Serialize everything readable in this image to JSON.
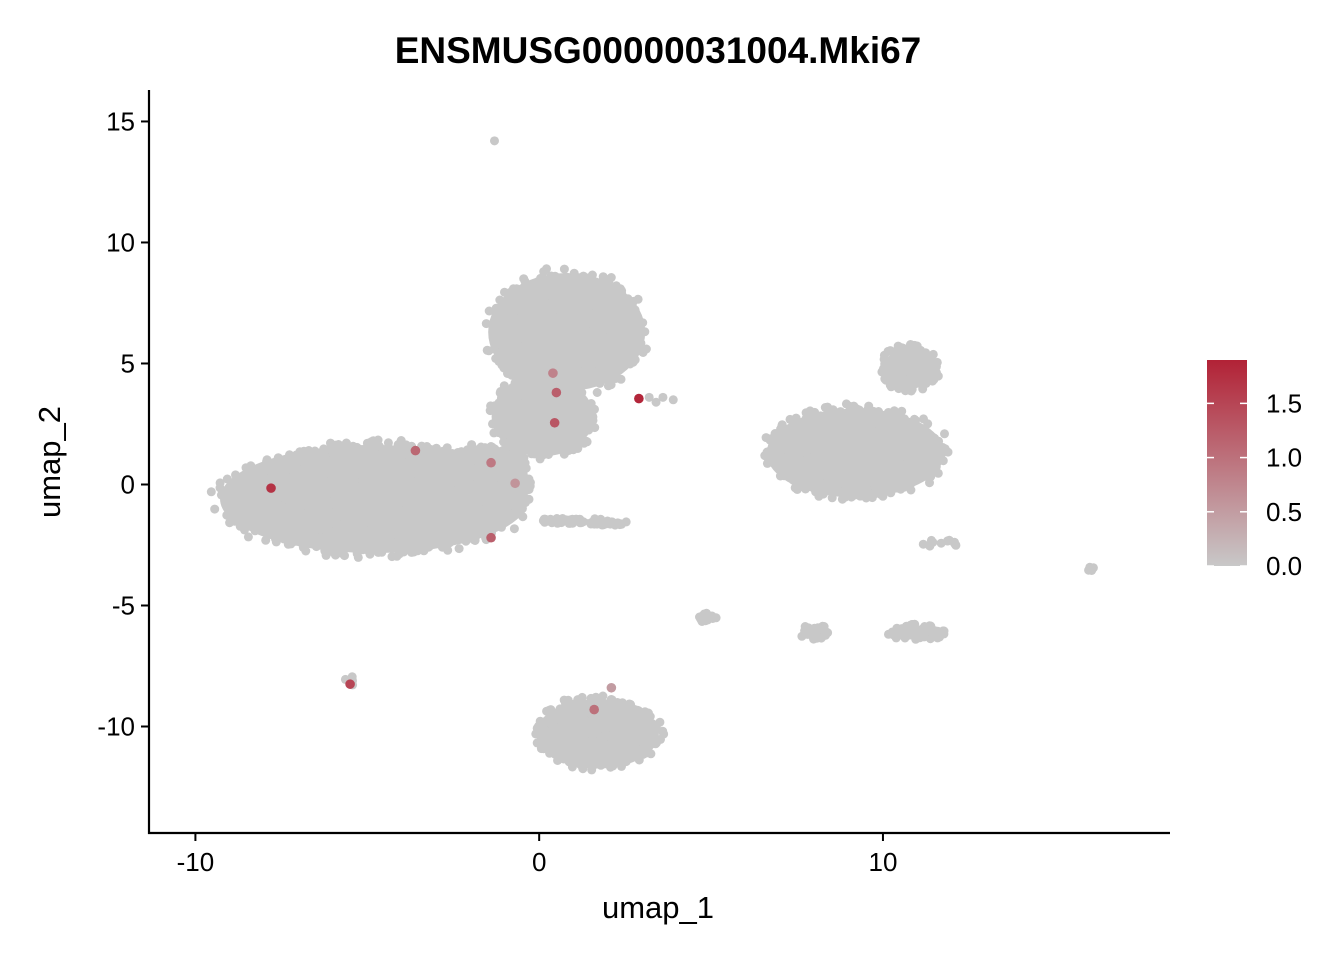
{
  "chart_data": {
    "type": "scatter",
    "title": "ENSMUSG00000031004.Mki67",
    "xlabel": "umap_1",
    "ylabel": "umap_2",
    "xlim": [
      -11.35,
      18.35
    ],
    "ylim": [
      -14.4,
      16.3
    ],
    "x_ticks": [
      -10,
      0,
      10
    ],
    "x_tick_labels": [
      "-10",
      "0",
      "10"
    ],
    "y_ticks": [
      -10,
      -5,
      0,
      5,
      10,
      15
    ],
    "y_tick_labels": [
      "-10",
      "-5",
      "0",
      "5",
      "10",
      "15"
    ],
    "grid": false,
    "legend_position": "right",
    "color_scale": {
      "low": "#c8c8c8",
      "high": "#b22236",
      "min": 0,
      "max": 1.9,
      "ticks": [
        0.0,
        0.5,
        1.0,
        1.5
      ],
      "tick_labels": [
        "0.0",
        "0.5",
        "1.0",
        "1.5"
      ]
    },
    "clusters": [
      {
        "cx": -4.8,
        "cy": -0.6,
        "rx": 4.6,
        "ry": 2.4,
        "n": 1500
      },
      {
        "cx": -1.6,
        "cy": 0.2,
        "rx": 1.4,
        "ry": 1.6,
        "n": 250
      },
      {
        "cx": 0.8,
        "cy": 6.3,
        "rx": 2.4,
        "ry": 2.6,
        "n": 700
      },
      {
        "cx": 0.1,
        "cy": 2.8,
        "rx": 1.6,
        "ry": 1.8,
        "n": 220
      },
      {
        "cx": 9.2,
        "cy": 1.3,
        "rx": 2.7,
        "ry": 2.0,
        "n": 700
      },
      {
        "cx": 10.8,
        "cy": 4.8,
        "rx": 0.9,
        "ry": 1.0,
        "n": 160
      },
      {
        "cx": 1.7,
        "cy": -10.3,
        "rx": 1.9,
        "ry": 1.6,
        "n": 450
      },
      {
        "cx": 11.0,
        "cy": -6.1,
        "rx": 0.9,
        "ry": 0.35,
        "n": 70
      },
      {
        "cx": 8.0,
        "cy": -6.1,
        "rx": 0.4,
        "ry": 0.35,
        "n": 40
      },
      {
        "cx": 4.9,
        "cy": -5.5,
        "rx": 0.25,
        "ry": 0.2,
        "n": 15
      },
      {
        "cx": 0.9,
        "cy": -1.5,
        "rx": 1.0,
        "ry": 0.12,
        "n": 40
      },
      {
        "cx": 2.0,
        "cy": -1.6,
        "rx": 0.6,
        "ry": 0.12,
        "n": 25
      },
      {
        "cx": 11.7,
        "cy": -2.4,
        "rx": 0.6,
        "ry": 0.2,
        "n": 12
      },
      {
        "cx": 16.0,
        "cy": -3.5,
        "rx": 0.2,
        "ry": 0.08,
        "n": 5
      },
      {
        "cx": -5.5,
        "cy": -8.1,
        "rx": 0.2,
        "ry": 0.2,
        "n": 6
      }
    ],
    "outliers": [
      {
        "x": -1.3,
        "y": 14.2
      },
      {
        "x": 3.6,
        "y": 3.6
      },
      {
        "x": 3.9,
        "y": 3.5
      },
      {
        "x": 3.4,
        "y": 3.4
      },
      {
        "x": 3.2,
        "y": 3.6
      },
      {
        "x": -0.6,
        "y": -0.5
      },
      {
        "x": -0.4,
        "y": -0.2
      }
    ],
    "expressing_cells": [
      {
        "x": -7.8,
        "y": -0.15,
        "value": 1.7
      },
      {
        "x": 2.9,
        "y": 3.55,
        "value": 1.85
      },
      {
        "x": 0.45,
        "y": 2.55,
        "value": 1.3
      },
      {
        "x": 0.5,
        "y": 3.8,
        "value": 1.2
      },
      {
        "x": 0.4,
        "y": 4.6,
        "value": 0.8
      },
      {
        "x": -1.4,
        "y": 0.9,
        "value": 0.9
      },
      {
        "x": -0.7,
        "y": 0.05,
        "value": 0.6
      },
      {
        "x": -3.6,
        "y": 1.4,
        "value": 1.1
      },
      {
        "x": -1.4,
        "y": -2.2,
        "value": 1.2
      },
      {
        "x": -5.5,
        "y": -8.25,
        "value": 1.5
      },
      {
        "x": 1.6,
        "y": -9.3,
        "value": 1.0
      },
      {
        "x": 2.1,
        "y": -8.4,
        "value": 0.5
      }
    ]
  }
}
